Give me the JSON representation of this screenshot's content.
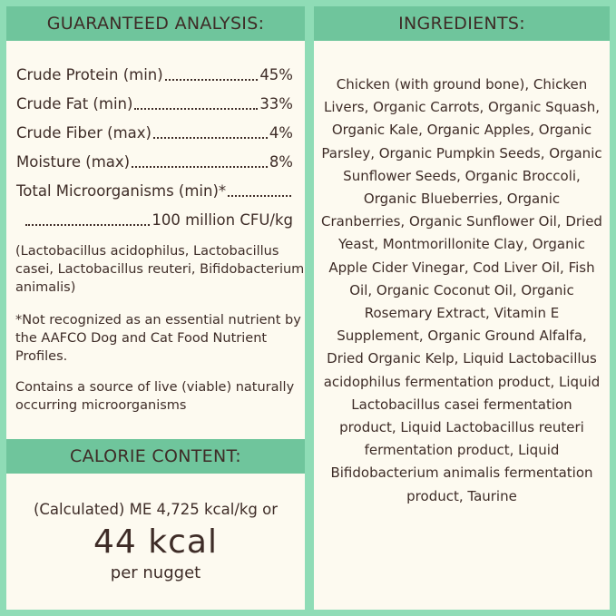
{
  "guaranteed_analysis": {
    "title": "GUARANTEED ANALYSIS:",
    "rows": [
      {
        "label": "Crude Protein (min)",
        "value": "45%"
      },
      {
        "label": "Crude Fat (min)",
        "value": "33%"
      },
      {
        "label": "Crude Fiber (max)",
        "value": "4%"
      },
      {
        "label": "Moisture (max)",
        "value": "8%"
      },
      {
        "label": "Total Microorganisms (min)*",
        "value": ""
      },
      {
        "label": "",
        "value": "100 million CFU/kg"
      }
    ],
    "strains_note": "(Lactobacillus acidophilus, Lactobacillus casei, Lactobacillus reuteri, Bifidobacterium animalis)",
    "aafco_note": "*Not recognized as an essential nutrient by the AAFCO Dog and Cat Food Nutrient Profiles.",
    "live_note": "Contains a source of live (viable) naturally occurring microorganisms"
  },
  "calorie_content": {
    "title": "CALORIE CONTENT:",
    "line1": "(Calculated) ME 4,725 kcal/kg or",
    "big": "44 kcal",
    "line3": "per nugget"
  },
  "ingredients": {
    "title": "INGREDIENTS:",
    "text": "Chicken (with ground bone), Chicken Livers, Organic Carrots, Organic Squash, Organic Kale, Organic Apples, Organic Parsley, Organic Pumpkin Seeds, Organic Sunflower Seeds, Organic Broccoli, Organic Blueberries, Organic Cranberries, Organic Sunflower Oil, Dried Yeast, Montmorillonite Clay, Organic Apple Cider Vinegar, Cod Liver Oil, Fish Oil, Organic Coconut Oil, Organic Rosemary Extract, Vitamin E Supplement, Organic Ground Alfalfa, Dried Organic Kelp, Liquid Lactobacillus acidophilus fermentation product, Liquid Lactobacillus casei fermentation product, Liquid Lactobacillus reuteri fermentation product, Liquid Bifidobacterium animalis fermentation product, Taurine"
  },
  "colors": {
    "background": "#8fdcb6",
    "header": "#6fc59c",
    "panel": "#fdfaf0",
    "text": "#3e2c27"
  }
}
